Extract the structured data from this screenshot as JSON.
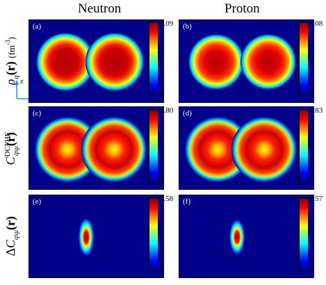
{
  "columns": [
    "Neutron",
    "Proton"
  ],
  "rows": [
    {
      "ylabel": "ρq(r) (fm-3)",
      "panels": [
        {
          "label": "(a)",
          "cmax": "0.09",
          "cmin": "0"
        },
        {
          "label": "(b)",
          "cmax": "0.08",
          "cmin": "0"
        }
      ]
    },
    {
      "ylabel": "C DCFHF qsμ (r)",
      "panels": [
        {
          "label": "(c)",
          "cmax": "0.80",
          "cmin": "0"
        },
        {
          "label": "(d)",
          "cmax": "0.83",
          "cmin": "0"
        }
      ]
    },
    {
      "ylabel": "ΔC qsμ (r)",
      "panels": [
        {
          "label": "(e)",
          "cmax": "0.58",
          "cmin": "0"
        },
        {
          "label": "(f)",
          "cmax": "0.57",
          "cmin": "0"
        }
      ]
    }
  ],
  "axes": {
    "z": "z",
    "x": "x"
  },
  "colors": {
    "background": "#00008b",
    "colormap": [
      "#00008b",
      "#0000ff",
      "#00ffff",
      "#ffff00",
      "#ff0000",
      "#8b0000"
    ]
  }
}
